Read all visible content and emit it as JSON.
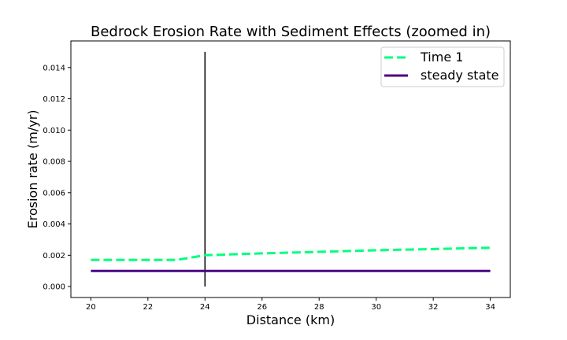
{
  "chart_data": {
    "type": "line",
    "title": "Bedrock Erosion Rate with Sediment Effects (zoomed in)",
    "xlabel": "Distance (km)",
    "ylabel": "Erosion rate (m/yr)",
    "xlim": [
      19.3,
      34.7
    ],
    "ylim": [
      -0.0007,
      0.0157
    ],
    "xticks": [
      20,
      22,
      24,
      26,
      28,
      30,
      32,
      34
    ],
    "yticks": [
      0.0,
      0.002,
      0.004,
      0.006,
      0.008,
      0.01,
      0.012,
      0.014
    ],
    "ytick_labels": [
      "0.000",
      "0.002",
      "0.004",
      "0.006",
      "0.008",
      "0.010",
      "0.012",
      "0.014"
    ],
    "grid": false,
    "legend_position": "top-right",
    "series": [
      {
        "name": "Time 1",
        "color": "#00ff7f",
        "style": "dashed",
        "x": [
          20,
          23,
          24,
          26,
          28,
          30,
          32,
          34
        ],
        "y": [
          0.0017,
          0.0017,
          0.002,
          0.00212,
          0.00222,
          0.00232,
          0.0024,
          0.00248
        ]
      },
      {
        "name": "steady state",
        "color": "#4b0082",
        "style": "solid",
        "x": [
          20,
          34
        ],
        "y": [
          0.001,
          0.001
        ]
      }
    ],
    "vertical_line": {
      "x": 24,
      "y": [
        0.0,
        0.015
      ],
      "color": "#000000"
    }
  }
}
